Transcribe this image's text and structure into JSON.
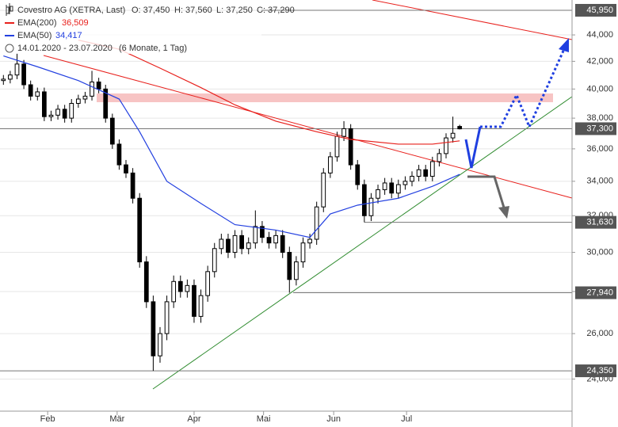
{
  "chart_data": {
    "type": "candlestick",
    "log_scale": true,
    "ylim": [
      22680,
      46790
    ],
    "xlim": [
      -0.5,
      83.5
    ],
    "yticks": [
      {
        "value": 24000,
        "label": "24,000"
      },
      {
        "value": 26000,
        "label": "26,000"
      },
      {
        "value": 28000,
        "label": "28,000"
      },
      {
        "value": 30000,
        "label": "30,000"
      },
      {
        "value": 32000,
        "label": "32,000"
      },
      {
        "value": 34000,
        "label": "34,000"
      },
      {
        "value": 36000,
        "label": "36,000"
      },
      {
        "value": 38000,
        "label": "38,000"
      },
      {
        "value": 40000,
        "label": "40,000"
      },
      {
        "value": 42000,
        "label": "42,000"
      },
      {
        "value": 44000,
        "label": "44,000"
      }
    ],
    "xticks": [
      {
        "value": 6.5,
        "label": "Feb"
      },
      {
        "value": 16.7,
        "label": "Mär"
      },
      {
        "value": 28,
        "label": "Apr"
      },
      {
        "value": 38.2,
        "label": "Mai"
      },
      {
        "value": 48.5,
        "label": "Jun"
      },
      {
        "value": 59.2,
        "label": "Jul"
      }
    ],
    "legend": {
      "stats": [
        "O: 37,450",
        "H: 37,560",
        "L: 37,250",
        "C: 37,290"
      ],
      "period": "14.01.2020 - 23.07.2020",
      "period_note": "(6 Monate, 1 Tag)"
    },
    "series": [
      {
        "name": "Covestro AG (XETRA, Last)",
        "color": "#000000",
        "open": [
          40600,
          40700,
          41000,
          41800,
          40300,
          39500,
          39800,
          38100,
          38200,
          38600,
          38000,
          39000,
          39300,
          39500,
          40500,
          40000,
          38000,
          36300,
          35000,
          34500,
          33000,
          29500,
          27500,
          25000,
          26000,
          27500,
          28500,
          28000,
          28300,
          26800,
          27800,
          29000,
          30200,
          30700,
          30000,
          30900,
          30200,
          30500,
          31400,
          30800,
          30500,
          30900,
          30000,
          28600,
          29500,
          30500,
          30700,
          32500,
          34500,
          35500,
          36800,
          37300,
          35000,
          33800,
          32000,
          33000,
          33500,
          33900,
          33300,
          33800,
          34000,
          34300,
          34700,
          34300,
          35200,
          35700,
          36700,
          37450
        ],
        "high": [
          41000,
          41300,
          42600,
          42100,
          40600,
          40100,
          40100,
          38500,
          38900,
          38900,
          39300,
          39600,
          39800,
          41300,
          40800,
          40300,
          38300,
          36600,
          35300,
          34800,
          33300,
          29800,
          27800,
          26300,
          27800,
          28800,
          28800,
          28600,
          28600,
          28100,
          29300,
          30500,
          31000,
          31000,
          31200,
          31200,
          30800,
          32300,
          31700,
          31100,
          31200,
          31200,
          30300,
          29800,
          30800,
          31000,
          32800,
          34800,
          35800,
          37100,
          37800,
          37600,
          35300,
          34100,
          33300,
          33800,
          34200,
          34200,
          34100,
          34300,
          34600,
          35000,
          35000,
          35500,
          36000,
          37000,
          38100,
          37560
        ],
        "low": [
          40300,
          40400,
          40700,
          40000,
          39200,
          39200,
          37800,
          37800,
          37900,
          37700,
          37700,
          38700,
          39000,
          39200,
          39700,
          37700,
          36000,
          34700,
          34200,
          32700,
          29200,
          27200,
          24350,
          24700,
          25700,
          27200,
          27700,
          27700,
          26500,
          26500,
          27500,
          28700,
          29900,
          29700,
          29700,
          29900,
          29900,
          30200,
          30500,
          30200,
          30200,
          29700,
          27940,
          28300,
          29200,
          30200,
          30400,
          32200,
          34200,
          35200,
          36500,
          34700,
          33500,
          31630,
          31700,
          32700,
          33200,
          33000,
          33000,
          33500,
          33700,
          34000,
          34000,
          34000,
          34900,
          35400,
          36400,
          37250
        ],
        "close": [
          40700,
          41000,
          41800,
          40300,
          39500,
          39800,
          38100,
          38200,
          38600,
          38000,
          39000,
          39300,
          39500,
          40500,
          40000,
          38000,
          36300,
          35000,
          34500,
          33000,
          29500,
          27500,
          25000,
          26000,
          27500,
          28500,
          28000,
          28300,
          26800,
          27800,
          29000,
          30200,
          30700,
          30000,
          30900,
          30200,
          30500,
          31400,
          30800,
          30500,
          30900,
          30000,
          28600,
          29500,
          30500,
          30700,
          32500,
          34500,
          35500,
          36800,
          37300,
          35000,
          33800,
          32000,
          33000,
          33500,
          33900,
          33300,
          33800,
          34000,
          34300,
          34700,
          34300,
          35200,
          35700,
          36700,
          37000,
          37290
        ]
      },
      {
        "name": "EMA(200)",
        "last_label": "36,509",
        "color": "#e8201c",
        "x": [
          11,
          17,
          23,
          29,
          34,
          40,
          46,
          51,
          58,
          63,
          67
        ],
        "values": [
          43600,
          42900,
          41500,
          40100,
          38900,
          37800,
          37100,
          36600,
          36300,
          36300,
          36509
        ]
      },
      {
        "name": "EMA(50)",
        "last_label": "34,417",
        "color": "#2340e0",
        "x": [
          0,
          5,
          11,
          17,
          20,
          24,
          29,
          34,
          40,
          45,
          48,
          52,
          58,
          63,
          67
        ],
        "values": [
          42400,
          41600,
          40600,
          39300,
          37100,
          34000,
          32700,
          31500,
          31200,
          30800,
          32100,
          32600,
          33000,
          33700,
          34417
        ]
      }
    ],
    "levels": [
      {
        "value": 45950,
        "label": "45,950"
      },
      {
        "value": 37300,
        "label": "37,300"
      },
      {
        "value": 31630,
        "label": "31,630"
      },
      {
        "value": 27940,
        "label": "27,940"
      },
      {
        "value": 24350,
        "label": "24,350"
      }
    ]
  }
}
